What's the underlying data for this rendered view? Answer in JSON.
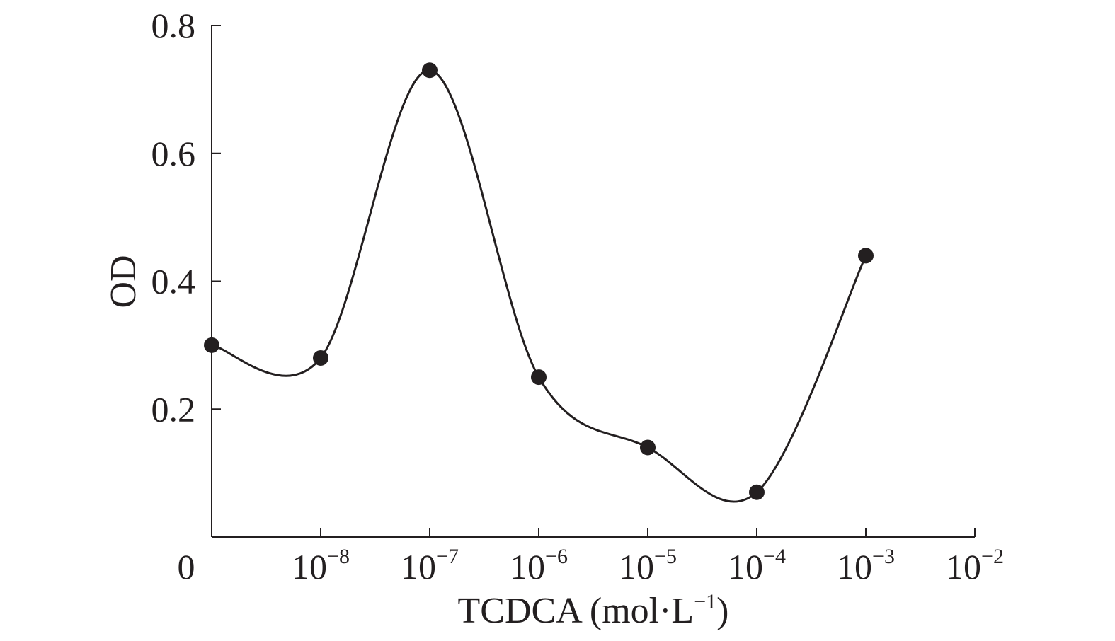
{
  "chart_data": {
    "type": "line",
    "title": "",
    "xlabel": "TCDCA (mol·L",
    "xlabel_sup": "−1",
    "xlabel_close": ")",
    "ylabel": "OD",
    "ylim": [
      0,
      0.8
    ],
    "y_ticks": [
      {
        "value": 0.2,
        "label": "0.2"
      },
      {
        "value": 0.4,
        "label": "0.4"
      },
      {
        "value": 0.6,
        "label": "0.6"
      },
      {
        "value": 0.8,
        "label": "0.8"
      }
    ],
    "x_ticks": [
      {
        "value": 0,
        "base": "0",
        "exp": ""
      },
      {
        "value": 1e-08,
        "base": "10",
        "exp": "−8"
      },
      {
        "value": 1e-07,
        "base": "10",
        "exp": "−7"
      },
      {
        "value": 1e-06,
        "base": "10",
        "exp": "−6"
      },
      {
        "value": 1e-05,
        "base": "10",
        "exp": "−5"
      },
      {
        "value": 0.0001,
        "base": "10",
        "exp": "−4"
      },
      {
        "value": 0.001,
        "base": "10",
        "exp": "−3"
      },
      {
        "value": 0.01,
        "base": "10",
        "exp": "−2"
      }
    ],
    "x_scale": "log (with 0 category at origin)",
    "series": [
      {
        "color": "#231f20",
        "smooth": true,
        "points": [
          {
            "x": 0,
            "y": 0.3
          },
          {
            "x": 1e-08,
            "y": 0.28
          },
          {
            "x": 1e-07,
            "y": 0.73
          },
          {
            "x": 1e-06,
            "y": 0.25
          },
          {
            "x": 1e-05,
            "y": 0.14
          },
          {
            "x": 0.0001,
            "y": 0.07
          },
          {
            "x": 0.001,
            "y": 0.44
          }
        ]
      }
    ],
    "grid": false,
    "legend": "none"
  }
}
